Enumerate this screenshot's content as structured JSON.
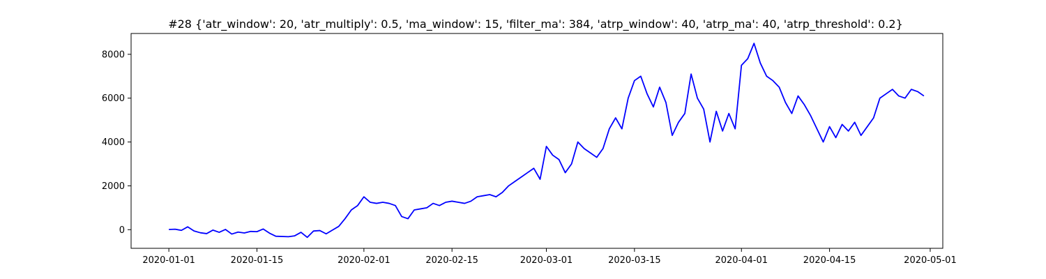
{
  "chart_data": {
    "type": "line",
    "title": "#28 {'atr_window': 20, 'atr_multiply': 0.5, 'ma_window': 15, 'filter_ma': 384, 'atrp_window': 40, 'atrp_ma': 40, 'atrp_threshold': 0.2}",
    "xlabel": "",
    "ylabel": "",
    "x_axis_type": "date",
    "xlim": [
      "2019-12-26",
      "2020-05-03"
    ],
    "ylim": [
      -850,
      8950
    ],
    "x_ticks": [
      "2020-01-01",
      "2020-01-15",
      "2020-02-01",
      "2020-02-15",
      "2020-03-01",
      "2020-03-15",
      "2020-04-01",
      "2020-04-15",
      "2020-05-01"
    ],
    "y_ticks": [
      0,
      2000,
      4000,
      6000,
      8000
    ],
    "grid": false,
    "legend": "none",
    "series": [
      {
        "color": "#0000ff",
        "points": [
          [
            "2020-01-01",
            10
          ],
          [
            "2020-01-02",
            20
          ],
          [
            "2020-01-03",
            -30
          ],
          [
            "2020-01-04",
            130
          ],
          [
            "2020-01-05",
            -60
          ],
          [
            "2020-01-06",
            -140
          ],
          [
            "2020-01-07",
            -180
          ],
          [
            "2020-01-08",
            -20
          ],
          [
            "2020-01-09",
            -120
          ],
          [
            "2020-01-10",
            10
          ],
          [
            "2020-01-11",
            -200
          ],
          [
            "2020-01-12",
            -110
          ],
          [
            "2020-01-13",
            -150
          ],
          [
            "2020-01-14",
            -80
          ],
          [
            "2020-01-15",
            -90
          ],
          [
            "2020-01-16",
            30
          ],
          [
            "2020-01-17",
            -160
          ],
          [
            "2020-01-18",
            -300
          ],
          [
            "2020-01-20",
            -320
          ],
          [
            "2020-01-21",
            -280
          ],
          [
            "2020-01-22",
            -120
          ],
          [
            "2020-01-23",
            -350
          ],
          [
            "2020-01-24",
            -60
          ],
          [
            "2020-01-25",
            -40
          ],
          [
            "2020-01-26",
            -190
          ],
          [
            "2020-01-27",
            -20
          ],
          [
            "2020-01-28",
            150
          ],
          [
            "2020-01-29",
            500
          ],
          [
            "2020-01-30",
            900
          ],
          [
            "2020-01-31",
            1100
          ],
          [
            "2020-02-01",
            1500
          ],
          [
            "2020-02-02",
            1250
          ],
          [
            "2020-02-03",
            1200
          ],
          [
            "2020-02-04",
            1250
          ],
          [
            "2020-02-05",
            1200
          ],
          [
            "2020-02-06",
            1100
          ],
          [
            "2020-02-07",
            600
          ],
          [
            "2020-02-08",
            500
          ],
          [
            "2020-02-09",
            900
          ],
          [
            "2020-02-10",
            950
          ],
          [
            "2020-02-11",
            1000
          ],
          [
            "2020-02-12",
            1200
          ],
          [
            "2020-02-13",
            1100
          ],
          [
            "2020-02-14",
            1250
          ],
          [
            "2020-02-15",
            1300
          ],
          [
            "2020-02-16",
            1250
          ],
          [
            "2020-02-17",
            1200
          ],
          [
            "2020-02-18",
            1300
          ],
          [
            "2020-02-19",
            1500
          ],
          [
            "2020-02-20",
            1550
          ],
          [
            "2020-02-21",
            1600
          ],
          [
            "2020-02-22",
            1500
          ],
          [
            "2020-02-23",
            1700
          ],
          [
            "2020-02-24",
            2000
          ],
          [
            "2020-02-25",
            2200
          ],
          [
            "2020-02-26",
            2400
          ],
          [
            "2020-02-27",
            2600
          ],
          [
            "2020-02-28",
            2800
          ],
          [
            "2020-02-29",
            2300
          ],
          [
            "2020-03-01",
            3800
          ],
          [
            "2020-03-02",
            3400
          ],
          [
            "2020-03-03",
            3200
          ],
          [
            "2020-03-04",
            2600
          ],
          [
            "2020-03-05",
            3000
          ],
          [
            "2020-03-06",
            4000
          ],
          [
            "2020-03-07",
            3700
          ],
          [
            "2020-03-08",
            3500
          ],
          [
            "2020-03-09",
            3300
          ],
          [
            "2020-03-10",
            3700
          ],
          [
            "2020-03-11",
            4600
          ],
          [
            "2020-03-12",
            5100
          ],
          [
            "2020-03-13",
            4600
          ],
          [
            "2020-03-14",
            6000
          ],
          [
            "2020-03-15",
            6800
          ],
          [
            "2020-03-16",
            7000
          ],
          [
            "2020-03-17",
            6200
          ],
          [
            "2020-03-18",
            5600
          ],
          [
            "2020-03-19",
            6500
          ],
          [
            "2020-03-20",
            5800
          ],
          [
            "2020-03-21",
            4300
          ],
          [
            "2020-03-22",
            4900
          ],
          [
            "2020-03-23",
            5300
          ],
          [
            "2020-03-24",
            7100
          ],
          [
            "2020-03-25",
            6000
          ],
          [
            "2020-03-26",
            5500
          ],
          [
            "2020-03-27",
            4000
          ],
          [
            "2020-03-28",
            5400
          ],
          [
            "2020-03-29",
            4500
          ],
          [
            "2020-03-30",
            5300
          ],
          [
            "2020-03-31",
            4600
          ],
          [
            "2020-04-01",
            7500
          ],
          [
            "2020-04-02",
            7800
          ],
          [
            "2020-04-03",
            8500
          ],
          [
            "2020-04-04",
            7600
          ],
          [
            "2020-04-05",
            7000
          ],
          [
            "2020-04-06",
            6800
          ],
          [
            "2020-04-07",
            6500
          ],
          [
            "2020-04-08",
            5800
          ],
          [
            "2020-04-09",
            5300
          ],
          [
            "2020-04-10",
            6100
          ],
          [
            "2020-04-11",
            5700
          ],
          [
            "2020-04-12",
            5200
          ],
          [
            "2020-04-13",
            4600
          ],
          [
            "2020-04-14",
            4000
          ],
          [
            "2020-04-15",
            4700
          ],
          [
            "2020-04-16",
            4200
          ],
          [
            "2020-04-17",
            4800
          ],
          [
            "2020-04-18",
            4500
          ],
          [
            "2020-04-19",
            4900
          ],
          [
            "2020-04-20",
            4300
          ],
          [
            "2020-04-21",
            4700
          ],
          [
            "2020-04-22",
            5100
          ],
          [
            "2020-04-23",
            6000
          ],
          [
            "2020-04-24",
            6200
          ],
          [
            "2020-04-25",
            6400
          ],
          [
            "2020-04-26",
            6100
          ],
          [
            "2020-04-27",
            6000
          ],
          [
            "2020-04-28",
            6400
          ],
          [
            "2020-04-29",
            6300
          ],
          [
            "2020-04-30",
            6100
          ]
        ]
      }
    ]
  }
}
